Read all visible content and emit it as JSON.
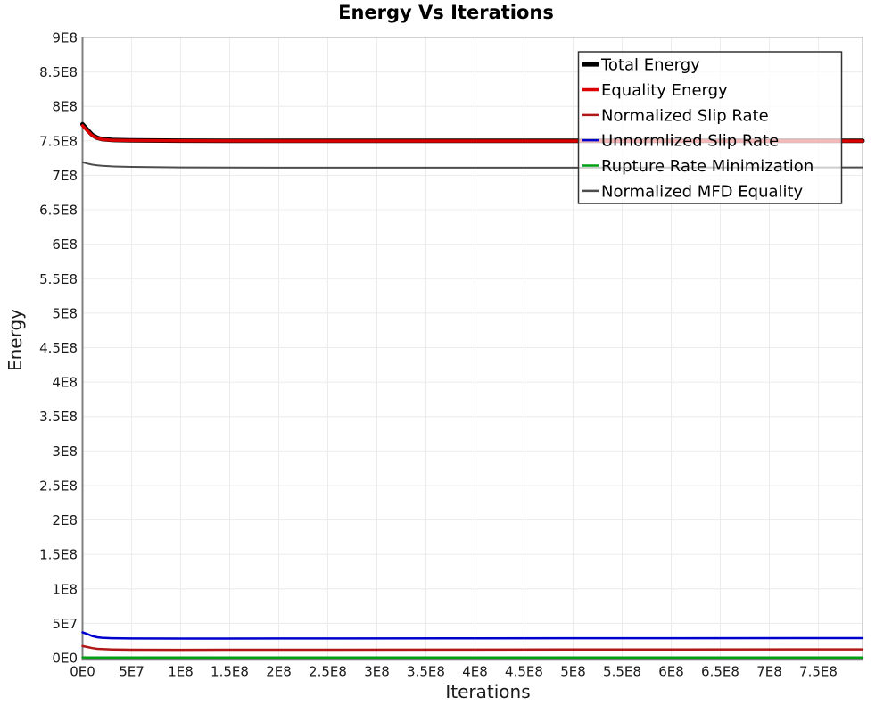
{
  "colors": {
    "background": "#ffffff",
    "grid": "#ececec",
    "frame": "#b9b9b9",
    "axis": "#7f7f7f",
    "legend_border": "#333333",
    "legend_bg": "rgba(255,255,255,0.72)",
    "tick_label": "#1a1a1a"
  },
  "chart_data": {
    "type": "line",
    "title": "Energy Vs Iterations",
    "xlabel": "Iterations",
    "ylabel": "Energy",
    "xlim": [
      0,
      795000000.0
    ],
    "ylim": [
      0,
      900000000.0
    ],
    "grid": true,
    "legend_position": "top-right",
    "x_tick_values": [
      0,
      50000000.0,
      100000000.0,
      150000000.0,
      200000000.0,
      250000000.0,
      300000000.0,
      350000000.0,
      400000000.0,
      450000000.0,
      500000000.0,
      550000000.0,
      600000000.0,
      650000000.0,
      700000000.0,
      750000000.0
    ],
    "x_tick_labels": [
      "0E0",
      "5E7",
      "1E8",
      "1.5E8",
      "2E8",
      "2.5E8",
      "3E8",
      "3.5E8",
      "4E8",
      "4.5E8",
      "5E8",
      "5.5E8",
      "6E8",
      "6.5E8",
      "7E8",
      "7.5E8"
    ],
    "y_tick_values": [
      0,
      50000000.0,
      100000000.0,
      150000000.0,
      200000000.0,
      250000000.0,
      300000000.0,
      350000000.0,
      400000000.0,
      450000000.0,
      500000000.0,
      550000000.0,
      600000000.0,
      650000000.0,
      700000000.0,
      750000000.0,
      800000000.0,
      850000000.0,
      900000000.0
    ],
    "y_tick_labels": [
      "0E0",
      "5E7",
      "1E8",
      "1.5E8",
      "2E8",
      "2.5E8",
      "3E8",
      "3.5E8",
      "4E8",
      "4.5E8",
      "5E8",
      "5.5E8",
      "6E8",
      "6.5E8",
      "7E8",
      "7.5E8",
      "8E8",
      "8.5E8",
      "9E8"
    ],
    "x": [
      0,
      5000000.0,
      10000000.0,
      15000000.0,
      20000000.0,
      30000000.0,
      50000000.0,
      100000000.0,
      200000000.0,
      400000000.0,
      600000000.0,
      795000000.0
    ],
    "series": [
      {
        "name": "Total Energy",
        "color": "#000000",
        "width": 5,
        "y": [
          774000000.0,
          766000000.0,
          758500000.0,
          754500000.0,
          752500000.0,
          751300000.0,
          750700000.0,
          750300000.0,
          750000000.0,
          750000000.0,
          750000000.0,
          750000000.0
        ]
      },
      {
        "name": "Equality Energy",
        "color": "#dd0000",
        "width": 3.5,
        "y": [
          772000000.0,
          764500000.0,
          757500000.0,
          754000000.0,
          752000000.0,
          751000000.0,
          750500000.0,
          750000000.0,
          749800000.0,
          749800000.0,
          749800000.0,
          749800000.0
        ]
      },
      {
        "name": "Normalized Slip Rate",
        "color": "#b01818",
        "width": 2.5,
        "y": [
          17000000.0,
          15500000.0,
          14000000.0,
          13000000.0,
          12500000.0,
          12000000.0,
          11700000.0,
          11500000.0,
          11600000.0,
          11800000.0,
          12000000.0,
          12200000.0
        ]
      },
      {
        "name": "Unnormlized Slip Rate",
        "color": "#0000cd",
        "width": 2.5,
        "y": [
          37000000.0,
          34500000.0,
          31500000.0,
          29800000.0,
          29000000.0,
          28400000.0,
          28000000.0,
          27900000.0,
          28000000.0,
          28200000.0,
          28400000.0,
          28500000.0
        ]
      },
      {
        "name": "Rupture Rate Minimization",
        "color": "#00a015",
        "width": 2.5,
        "y": [
          500000.0,
          450000.0,
          400000.0,
          400000.0,
          400000.0,
          400000.0,
          400000.0,
          400000.0,
          400000.0,
          400000.0,
          400000.0,
          400000.0
        ]
      },
      {
        "name": "Normalized MFD Equality",
        "color": "#4d4d4d",
        "width": 2,
        "y": [
          719000000.0,
          717000000.0,
          715500000.0,
          714500000.0,
          713800000.0,
          713000000.0,
          712200000.0,
          711500000.0,
          711000000.0,
          711000000.0,
          711200000.0,
          711500000.0
        ]
      }
    ]
  }
}
